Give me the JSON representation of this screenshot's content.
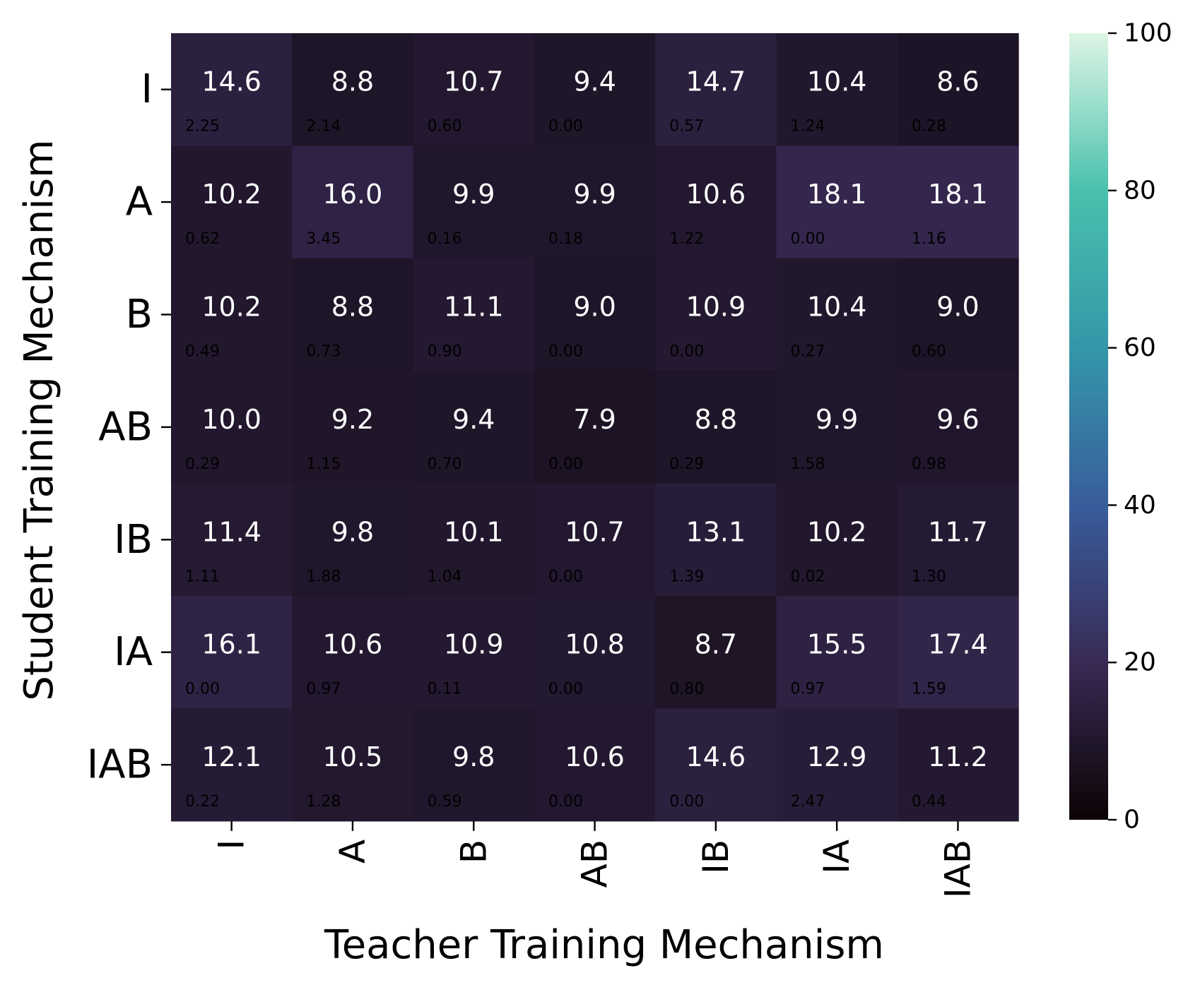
{
  "chart_data": {
    "type": "heatmap",
    "xlabel": "Teacher Training Mechanism",
    "ylabel": "Student Training Mechanism",
    "x_categories": [
      "I",
      "A",
      "B",
      "AB",
      "IB",
      "IA",
      "IAB"
    ],
    "y_categories": [
      "I",
      "A",
      "B",
      "AB",
      "IB",
      "IA",
      "IAB"
    ],
    "values": [
      [
        14.6,
        8.8,
        10.7,
        9.4,
        14.7,
        10.4,
        8.6
      ],
      [
        10.2,
        16.0,
        9.9,
        9.9,
        10.6,
        18.1,
        18.1
      ],
      [
        10.2,
        8.8,
        11.1,
        9.0,
        10.9,
        10.4,
        9.0
      ],
      [
        10.0,
        9.2,
        9.4,
        7.9,
        8.8,
        9.9,
        9.6
      ],
      [
        11.4,
        9.8,
        10.1,
        10.7,
        13.1,
        10.2,
        11.7
      ],
      [
        16.1,
        10.6,
        10.9,
        10.8,
        8.7,
        15.5,
        17.4
      ],
      [
        12.1,
        10.5,
        9.8,
        10.6,
        14.6,
        12.9,
        11.2
      ]
    ],
    "value_labels": [
      [
        "14.6",
        "8.8",
        "10.7",
        "9.4",
        "14.7",
        "10.4",
        "8.6"
      ],
      [
        "10.2",
        "16.0",
        "9.9",
        "9.9",
        "10.6",
        "18.1",
        "18.1"
      ],
      [
        "10.2",
        "8.8",
        "11.1",
        "9.0",
        "10.9",
        "10.4",
        "9.0"
      ],
      [
        "10.0",
        "9.2",
        "9.4",
        "7.9",
        "8.8",
        "9.9",
        "9.6"
      ],
      [
        "11.4",
        "9.8",
        "10.1",
        "10.7",
        "13.1",
        "10.2",
        "11.7"
      ],
      [
        "16.1",
        "10.6",
        "10.9",
        "10.8",
        "8.7",
        "15.5",
        "17.4"
      ],
      [
        "12.1",
        "10.5",
        "9.8",
        "10.6",
        "14.6",
        "12.9",
        "11.2"
      ]
    ],
    "std_labels": [
      [
        "2.25",
        "2.14",
        "0.60",
        "0.00",
        "0.57",
        "1.24",
        "0.28"
      ],
      [
        "0.62",
        "3.45",
        "0.16",
        "0.18",
        "1.22",
        "0.00",
        "1.16"
      ],
      [
        "0.49",
        "0.73",
        "0.90",
        "0.00",
        "0.00",
        "0.27",
        "0.60"
      ],
      [
        "0.29",
        "1.15",
        "0.70",
        "0.00",
        "0.29",
        "1.58",
        "0.98"
      ],
      [
        "1.11",
        "1.88",
        "1.04",
        "0.00",
        "1.39",
        "0.02",
        "1.30"
      ],
      [
        "0.00",
        "0.97",
        "0.11",
        "0.00",
        "0.80",
        "0.97",
        "1.59"
      ],
      [
        "0.22",
        "1.28",
        "0.59",
        "0.00",
        "0.00",
        "2.47",
        "0.44"
      ]
    ],
    "colorbar": {
      "min": 0,
      "max": 100,
      "ticks": [
        0,
        20,
        40,
        60,
        80,
        100
      ],
      "tick_labels": [
        "0",
        "20",
        "40",
        "60",
        "80",
        "100"
      ],
      "colormap": "mako",
      "stops": [
        "#0b0405",
        "#382a54",
        "#395d9c",
        "#3497a9",
        "#49c1ad",
        "#def5e5"
      ]
    }
  }
}
